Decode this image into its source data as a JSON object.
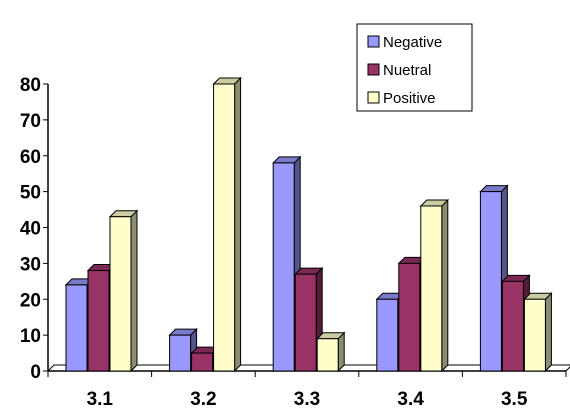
{
  "chart_data": {
    "type": "bar",
    "style": "3d-clustered",
    "title": "",
    "xlabel": "",
    "ylabel": "",
    "categories": [
      "3.1",
      "3.2",
      "3.3",
      "3.4",
      "3.5"
    ],
    "ylim": [
      0,
      80
    ],
    "yticks": [
      0,
      10,
      20,
      30,
      40,
      50,
      60,
      70,
      80
    ],
    "grid": false,
    "legend_position": "top-right",
    "series": [
      {
        "name": "Negative",
        "color": "#9999FF",
        "values": [
          24,
          10,
          58,
          20,
          50
        ]
      },
      {
        "name": "Nuetral",
        "color": "#993366",
        "values": [
          28,
          5,
          27,
          30,
          25
        ]
      },
      {
        "name": "Positive",
        "color": "#FFFFCC",
        "values": [
          43,
          80,
          9,
          46,
          20
        ]
      }
    ]
  }
}
